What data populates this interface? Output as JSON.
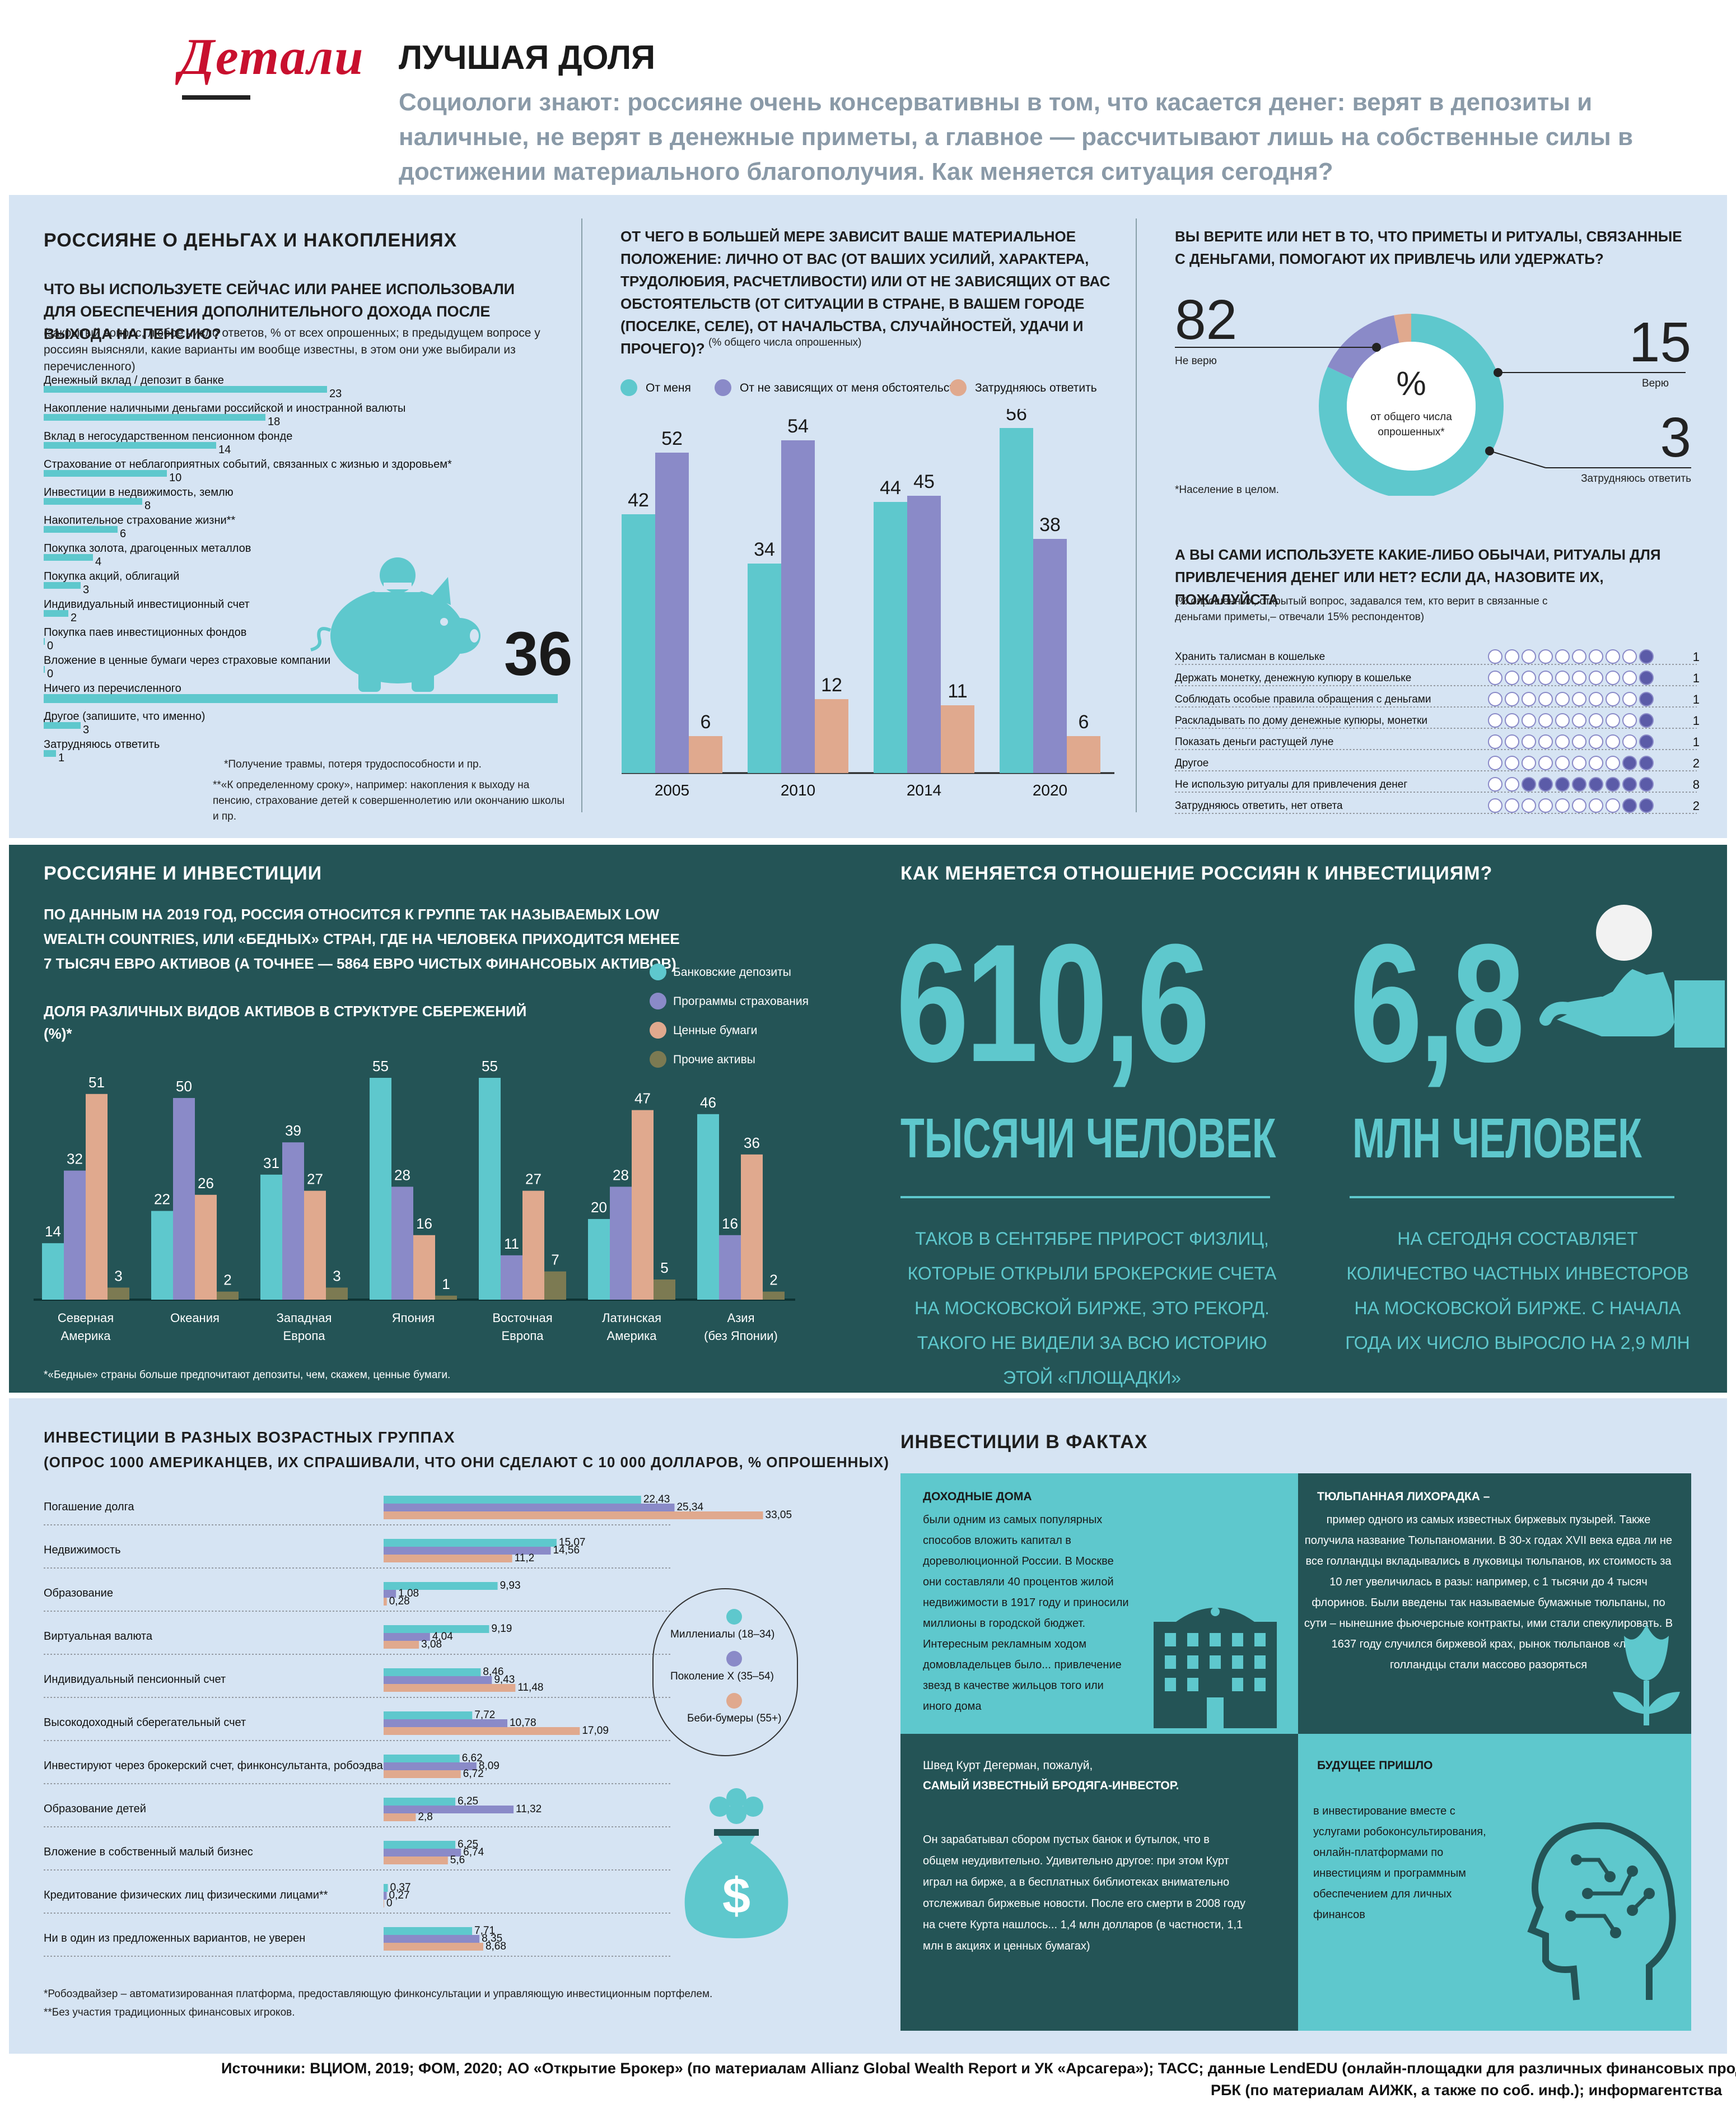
{
  "header": {
    "logo": "Детали",
    "title": "ЛУЧШАЯ ДОЛЯ",
    "subtitle": "Социологи знают: россияне очень консервативны в том, что касается денег: верят в депозиты и наличные, не верят в денежные приметы, а главное — рассчитывают лишь на собственные силы в достижении материального благополучия. Как меняется ситуация сегодня?"
  },
  "colors": {
    "teal": "#5ec8cd",
    "purple": "#8a8ac8",
    "peach": "#e0a98e",
    "olive": "#7c7a52",
    "dark_panel": "#245456",
    "light_panel": "#d6e4f3",
    "logo_red": "#c8102e"
  },
  "sec1": {
    "title": "РОССИЯНЕ О ДЕНЬГАХ И НАКОПЛЕНИЯХ",
    "question": "ЧТО ВЫ ИСПОЛЬЗУЕТЕ СЕЙЧАС ИЛИ РАНЕЕ ИСПОЛЬЗОВАЛИ ДЛЯ ОБЕСПЕЧЕНИЯ ДОПОЛНИТЕЛЬНОГО ДОХОДА ПОСЛЕ ВЫХОДА НА ПЕНСИЮ?",
    "note": "(закрытый вопрос, любое число ответов, % от всех опрошенных; в предыдущем вопросе у россиян выясняли, какие варианты им вообще известны, в этом они уже выбирали из перечисленного)",
    "footnote1": "*Получение травмы, потеря трудоспособности и пр.",
    "footnote2": "**«К определенному сроку», например: накопления к выходу на пенсию, страхование детей к совершеннолетию или окончанию школы и пр."
  },
  "sec2": {
    "question": "ОТ ЧЕГО В БОЛЬШЕЙ МЕРЕ ЗАВИСИТ ВАШЕ МАТЕРИАЛЬНОЕ ПОЛОЖЕНИЕ: ЛИЧНО ОТ ВАС (ОТ ВАШИХ УСИЛИЙ, ХАРАКТЕРА, ТРУДОЛЮБИЯ, РАСЧЕТЛИВОСТИ) ИЛИ ОТ НЕ ЗАВИСЯЩИХ ОТ ВАС ОБСТОЯТЕЛЬСТВ (ОТ СИТУАЦИИ В СТРАНЕ, В ВАШЕМ ГОРОДЕ (ПОСЕЛКЕ, СЕЛЕ), ОТ НАЧАЛЬСТВА, СЛУЧАЙНОСТЕЙ, УДАЧИ И ПРОЧЕГО)?",
    "note": "(% общего числа опрошенных)"
  },
  "sec3": {
    "question": "ВЫ ВЕРИТЕ ИЛИ НЕТ В ТО, ЧТО ПРИМЕТЫ И РИТУАЛЫ, СВЯЗАННЫЕ С ДЕНЬГАМИ, ПОМОГАЮТ ИХ ПРИВЛЕЧЬ ИЛИ УДЕРЖАТЬ?",
    "center_symbol": "%",
    "center_text": "от общего числа опрошенных*",
    "footnote": "*Население в целом.",
    "q2": "А ВЫ САМИ ИСПОЛЬЗУЕТЕ КАКИЕ-ЛИБО ОБЫЧАИ, РИТУАЛЫ ДЛЯ ПРИВЛЕЧЕНИЯ ДЕНЕГ ИЛИ НЕТ? ЕСЛИ ДА, НАЗОВИТЕ ИХ, ПОЖАЛУЙСТА",
    "q2_note": "(% опрошенных, открытый вопрос, задавался тем, кто верит в связанные с деньгами приметы,– отвечали 15% респондентов)"
  },
  "sec4": {
    "title": "РОССИЯНЕ И ИНВЕСТИЦИИ",
    "text": "ПО ДАННЫМ НА 2019 ГОД, РОССИЯ ОТНОСИТСЯ К ГРУППЕ ТАК НАЗЫВАЕМЫХ LOW WEALTH COUNTRIES, ИЛИ «БЕДНЫХ» СТРАН, ГДЕ НА ЧЕЛОВЕКА ПРИХОДИТСЯ МЕНЕЕ 7 ТЫСЯЧ ЕВРО АКТИВОВ (А ТОЧНЕЕ — 5864 ЕВРО ЧИСТЫХ ФИНАНСОВЫХ АКТИВОВ)",
    "chart_title": "ДОЛЯ РАЗЛИЧНЫХ ВИДОВ АКТИВОВ В СТРУКТУРЕ СБЕРЕЖЕНИЙ (%)*",
    "footnote": "*«Бедные» страны больше предпочитают депозиты, чем, скажем, ценные бумаги."
  },
  "sec5": {
    "title": "КАК МЕНЯЕТСЯ ОТНОШЕНИЕ РОССИЯН К ИНВЕСТИЦИЯМ?",
    "big1": "610,6",
    "unit1": "ТЫСЯЧИ ЧЕЛОВЕК",
    "desc1": "ТАКОВ В СЕНТЯБРЕ ПРИРОСТ ФИЗЛИЦ, КОТОРЫЕ ОТКРЫЛИ БРОКЕРСКИЕ СЧЕТА НА МОСКОВСКОЙ БИРЖЕ, ЭТО РЕКОРД. ТАКОГО НЕ ВИДЕЛИ ЗА ВСЮ ИСТОРИЮ ЭТОЙ «ПЛОЩАДКИ»",
    "big2": "6,8",
    "unit2": "МЛН ЧЕЛОВЕК",
    "desc2": "НА СЕГОДНЯ СОСТАВЛЯЕТ КОЛИЧЕСТВО ЧАСТНЫХ ИНВЕСТОРОВ НА МОСКОВСКОЙ БИРЖЕ. С НАЧАЛА ГОДА ИХ ЧИСЛО ВЫРОСЛО НА 2,9 МЛН"
  },
  "sec6": {
    "title": "ИНВЕСТИЦИИ В РАЗНЫХ ВОЗРАСТНЫХ ГРУППАХ",
    "subtitle": "(ОПРОС 1000 АМЕРИКАНЦЕВ, ИХ СПРАШИВАЛИ, ЧТО ОНИ СДЕЛАЮТ С 10 000 ДОЛЛАРОВ, % ОПРОШЕННЫХ)",
    "footnote1": "*Робоэдвайзер – автоматизированная платформа, предоставляющую финконсультации и управляющую инвестиционным портфелем.",
    "footnote2": "**Без участия традиционных финансовых игроков."
  },
  "sec7": {
    "title": "ИНВЕСТИЦИИ В ФАКТАХ",
    "box1_title": "ДОХОДНЫЕ ДОМА",
    "box1_text": "были одним из самых популярных способов вложить капитал в дореволюционной России. В Москве они составляли 40 процентов жилой недвижимости в 1917 году и приносили миллионы в городской бюджет. Интересным рекламным ходом домовладельцев было... привлечение звезд в качестве жильцов того или иного дома",
    "box2_title": "ТЮЛЬПАННАЯ ЛИХОРАДКА –",
    "box2_text": "пример одного из самых известных биржевых пузырей. Также получила название Тюльпаномании. В 30-х годах XVII века едва ли не все голландцы вкладывались в луковицы тюльпанов, их стоимость за 10 лет увеличилась в разы: например, с 1 тысячи до 4 тысяч флоринов. Были введены так называемые бумажные тюльпаны, по сути – нынешние фьючерсные контракты, ими стали спекулировать. В 1637 году случился биржевой крах, рынок тюльпанов «лег», голландцы стали массово разоряться",
    "box3_intro": "Швед Курт Дегерман, пожалуй,",
    "box3_title": "САМЫЙ ИЗВЕСТНЫЙ БРОДЯГА-ИНВЕСТОР.",
    "box3_text": "Он зарабатывал сбором пустых банок и бутылок, что в общем неудивительно. Удивительно другое: при этом Курт играл на бирже, а в бесплатных библиотеках внимательно отслеживал биржевые новости. После его смерти в 2008 году на счете Курта нашлось... 1,4 млн долларов (в частности, 1,1 млн в акциях и ценных бумагах)",
    "box4_title": "БУДУЩЕЕ ПРИШЛО",
    "box4_text": "в инвестирование вместе с услугами робоконсультирования, онлайн-платформами по инвестициям и программным обеспечением для личных финансов"
  },
  "sources": {
    "line1": "Источники: ВЦИОМ, 2019; ФОМ, 2020; АО «Открытие Брокер» (по материалам Allianz Global Wealth Report и УК «Арсагера»); ТАСС; данные LendEDU (онлайн-площадки для различных финансовых продуктов);",
    "line2": "РБК (по материалам АИЖК, а также по соб. инф.); информагентства"
  },
  "chart_data": [
    {
      "id": "pension",
      "type": "bar",
      "orientation": "horizontal",
      "categories": [
        "Денежный вклад / депозит в банке",
        "Накопление наличными деньгами российской и иностранной валюты",
        "Вклад в негосударственном пенсионном фонде",
        "Страхование от неблагоприятных событий, связанных с жизнью и здоровьем*",
        "Инвестиции в недвижимость, землю",
        "Накопительное страхование жизни**",
        "Покупка золота, драгоценных металлов",
        "Покупка акций, облигаций",
        "Индивидуальный инвестиционный счет",
        "Покупка паев инвестиционных фондов",
        "Вложение в ценные бумаги через страховые компании",
        "Ничего из перечисленного",
        "Другое (запишите, что именно)",
        "Затрудняюсь ответить"
      ],
      "values": [
        23,
        18,
        14,
        10,
        8,
        6,
        4,
        3,
        2,
        0,
        0,
        36,
        3,
        1
      ]
    },
    {
      "id": "depends",
      "type": "bar",
      "categories": [
        "2005",
        "2010",
        "2014",
        "2020"
      ],
      "series": [
        {
          "name": "От меня",
          "values": [
            42,
            34,
            44,
            56
          ]
        },
        {
          "name": "От не зависящих от меня обстоятельств",
          "values": [
            52,
            54,
            45,
            38
          ]
        },
        {
          "name": "Затрудняюсь ответить",
          "values": [
            6,
            12,
            11,
            6
          ]
        }
      ],
      "ylim": [
        0,
        60
      ]
    },
    {
      "id": "omens",
      "type": "pie",
      "slices": [
        {
          "label": "Не верю",
          "value": 82
        },
        {
          "label": "Верю",
          "value": 15
        },
        {
          "label": "Затрудняюсь ответить",
          "value": 3
        }
      ]
    },
    {
      "id": "rituals",
      "type": "bar",
      "orientation": "horizontal",
      "categories": [
        "Хранить талисман в кошельке",
        "Держать монетку, денежную купюру в кошельке",
        "Соблюдать особые правила обращения с деньгами",
        "Раскладывать по дому денежные купюры, монетки",
        "Показать деньги растущей луне",
        "Другое",
        "Не использую ритуалы для привлечения денег",
        "Затрудняюсь ответить, нет ответа"
      ],
      "values": [
        1,
        1,
        1,
        1,
        1,
        2,
        8,
        2
      ],
      "xlim": [
        0,
        10
      ]
    },
    {
      "id": "assets",
      "type": "bar",
      "categories": [
        "Северная Америка",
        "Океания",
        "Западная Европа",
        "Япония",
        "Восточная Европа",
        "Латинская Америка",
        "Азия (без Японии)"
      ],
      "series": [
        {
          "name": "Банковские депозиты",
          "values": [
            14,
            22,
            31,
            55,
            55,
            20,
            46
          ]
        },
        {
          "name": "Программы страхования",
          "values": [
            32,
            50,
            39,
            28,
            11,
            28,
            16
          ]
        },
        {
          "name": "Ценные бумаги",
          "values": [
            51,
            26,
            27,
            16,
            27,
            47,
            36
          ]
        },
        {
          "name": "Прочие активы",
          "values": [
            3,
            2,
            3,
            1,
            7,
            5,
            2
          ]
        }
      ],
      "ylim": [
        0,
        60
      ]
    },
    {
      "id": "age",
      "type": "bar",
      "orientation": "horizontal",
      "categories": [
        "Погашение долга",
        "Недвижимость",
        "Образование",
        "Виртуальная валюта",
        "Индивидуальный пенсионный счет",
        "Высокодоходный сберегательный счет",
        "Инвестируют через брокерский счет, финконсультанта, робоэдвайзера*",
        "Образование детей",
        "Вложение в собственный малый бизнес",
        "Кредитование физических лиц физическими лицами**",
        "Ни в один из предложенных вариантов, не уверен"
      ],
      "series": [
        {
          "name": "Миллениалы (18–34)",
          "values": [
            22.43,
            15.07,
            9.93,
            9.19,
            8.46,
            7.72,
            6.62,
            6.25,
            6.25,
            0.37,
            7.71
          ],
          "labels": [
            "22,43",
            "15,07",
            "9,93",
            "9,19",
            "8,46",
            "7,72",
            "6,62",
            "6,25",
            "6,25",
            "0,37",
            "7,71"
          ]
        },
        {
          "name": "Поколение X (35–54)",
          "values": [
            25.34,
            14.56,
            1.08,
            4.04,
            9.43,
            10.78,
            8.09,
            11.32,
            6.74,
            0.27,
            8.35
          ],
          "labels": [
            "25,34",
            "14,56",
            "1,08",
            "4,04",
            "9,43",
            "10,78",
            "8,09",
            "11,32",
            "6,74",
            "0,27",
            "8,35"
          ]
        },
        {
          "name": "Беби-бумеры (55+)",
          "values": [
            33.05,
            11.2,
            0.28,
            3.08,
            11.48,
            17.09,
            6.72,
            2.8,
            5.6,
            0,
            8.68
          ],
          "labels": [
            "33,05",
            "11,2",
            "0,28",
            "3,08",
            "11,48",
            "17,09",
            "6,72",
            "2,8",
            "5,6",
            "0",
            "8,68"
          ]
        }
      ]
    }
  ]
}
